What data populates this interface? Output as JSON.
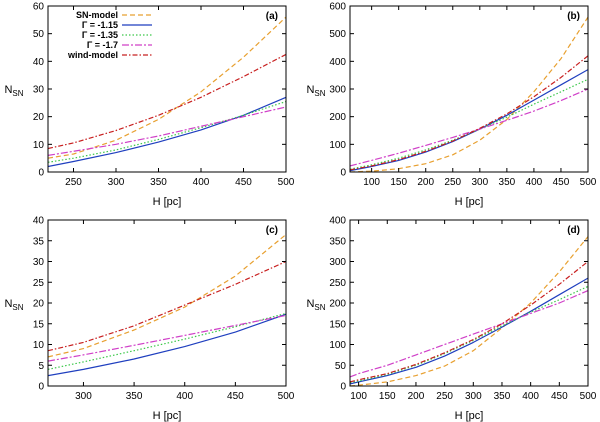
{
  "legend": [
    {
      "label": "SN-model",
      "color": "#e8a030",
      "dash": "5,3"
    },
    {
      "label": "Γ = -1.15",
      "color": "#1f3fbf",
      "dash": ""
    },
    {
      "label": "Γ = -1.35",
      "color": "#3cc84a",
      "dash": "1.5,2"
    },
    {
      "label": "Γ = -1.7",
      "color": "#d040c8",
      "dash": "7,2,2,2"
    },
    {
      "label": "wind-model",
      "color": "#c82020",
      "dash": "5,2,1.5,2"
    }
  ],
  "chart_data": [
    {
      "type": "line",
      "panel_label": "(a)",
      "xlabel": "H [pc]",
      "ylabel": "N",
      "ylabel_sub": "SN",
      "xlim": [
        220,
        500
      ],
      "ylim": [
        0,
        60
      ],
      "xticks": [
        250,
        300,
        350,
        400,
        450,
        500
      ],
      "yticks": [
        0,
        10,
        20,
        30,
        40,
        50,
        60
      ],
      "series": [
        {
          "name": "SN-model",
          "x": [
            220,
            250,
            300,
            350,
            400,
            450,
            500
          ],
          "y": [
            5.0,
            6.5,
            11.5,
            19.0,
            29.0,
            41.5,
            56.0
          ]
        },
        {
          "name": "Γ = -1.15",
          "x": [
            220,
            250,
            300,
            350,
            400,
            450,
            500
          ],
          "y": [
            2.0,
            3.8,
            7.0,
            10.8,
            15.2,
            20.5,
            27.0
          ]
        },
        {
          "name": "Γ = -1.35",
          "x": [
            220,
            250,
            300,
            350,
            400,
            450,
            500
          ],
          "y": [
            3.5,
            5.0,
            8.0,
            11.8,
            16.0,
            20.5,
            25.5
          ]
        },
        {
          "name": "Γ = -1.7",
          "x": [
            220,
            250,
            300,
            350,
            400,
            450,
            500
          ],
          "y": [
            6.0,
            7.5,
            10.0,
            13.0,
            16.5,
            20.0,
            23.5
          ]
        },
        {
          "name": "wind-model",
          "x": [
            220,
            250,
            300,
            350,
            400,
            450,
            500
          ],
          "y": [
            8.5,
            10.5,
            15.0,
            20.5,
            27.0,
            34.5,
            42.5
          ]
        }
      ]
    },
    {
      "type": "line",
      "panel_label": "(b)",
      "xlabel": "H [pc]",
      "ylabel": "N",
      "ylabel_sub": "SN",
      "xlim": [
        60,
        500
      ],
      "ylim": [
        0,
        600
      ],
      "xticks": [
        100,
        150,
        200,
        250,
        300,
        350,
        400,
        450,
        500
      ],
      "yticks": [
        0,
        100,
        200,
        300,
        400,
        500,
        600
      ],
      "series": [
        {
          "name": "SN-model",
          "x": [
            60,
            100,
            150,
            200,
            250,
            300,
            350,
            400,
            450,
            500
          ],
          "y": [
            0,
            3,
            12,
            30,
            62,
            115,
            190,
            290,
            410,
            560
          ]
        },
        {
          "name": "Γ = -1.15",
          "x": [
            60,
            100,
            150,
            200,
            250,
            300,
            350,
            400,
            450,
            500
          ],
          "y": [
            5,
            20,
            42,
            72,
            110,
            155,
            205,
            260,
            315,
            370
          ]
        },
        {
          "name": "Γ = -1.35",
          "x": [
            60,
            100,
            150,
            200,
            250,
            300,
            350,
            400,
            450,
            500
          ],
          "y": [
            10,
            26,
            50,
            80,
            115,
            155,
            198,
            245,
            290,
            335
          ]
        },
        {
          "name": "Γ = -1.7",
          "x": [
            60,
            100,
            150,
            200,
            250,
            300,
            350,
            400,
            450,
            500
          ],
          "y": [
            22,
            42,
            68,
            96,
            125,
            155,
            187,
            220,
            258,
            300
          ]
        },
        {
          "name": "wind-model",
          "x": [
            60,
            100,
            150,
            200,
            250,
            300,
            350,
            400,
            450,
            500
          ],
          "y": [
            8,
            22,
            45,
            75,
            112,
            158,
            210,
            272,
            342,
            420
          ]
        }
      ]
    },
    {
      "type": "line",
      "panel_label": "(c)",
      "xlabel": "H [pc]",
      "ylabel": "N",
      "ylabel_sub": "SN",
      "xlim": [
        265,
        500
      ],
      "ylim": [
        0,
        40
      ],
      "xticks": [
        300,
        350,
        400,
        450,
        500
      ],
      "yticks": [
        0,
        5,
        10,
        15,
        20,
        25,
        30,
        35,
        40
      ],
      "series": [
        {
          "name": "SN-model",
          "x": [
            265,
            300,
            350,
            400,
            450,
            500
          ],
          "y": [
            7.0,
            9.0,
            13.5,
            19.0,
            26.5,
            36.5
          ]
        },
        {
          "name": "Γ = -1.15",
          "x": [
            265,
            300,
            350,
            400,
            450,
            500
          ],
          "y": [
            2.5,
            4.0,
            6.5,
            9.5,
            13.0,
            17.3
          ]
        },
        {
          "name": "Γ = -1.35",
          "x": [
            265,
            300,
            350,
            400,
            450,
            500
          ],
          "y": [
            4.0,
            5.8,
            8.5,
            11.3,
            14.3,
            17.5
          ]
        },
        {
          "name": "Γ = -1.7",
          "x": [
            265,
            300,
            350,
            400,
            450,
            500
          ],
          "y": [
            6.0,
            7.5,
            9.8,
            12.2,
            14.6,
            17.0
          ]
        },
        {
          "name": "wind-model",
          "x": [
            265,
            300,
            350,
            400,
            450,
            500
          ],
          "y": [
            8.5,
            10.5,
            14.5,
            19.5,
            24.5,
            30.0
          ]
        }
      ]
    },
    {
      "type": "line",
      "panel_label": "(d)",
      "xlabel": "H [pc]",
      "ylabel": "N",
      "ylabel_sub": "SN",
      "xlim": [
        85,
        500
      ],
      "ylim": [
        0,
        400
      ],
      "xticks": [
        100,
        150,
        200,
        250,
        300,
        350,
        400,
        450,
        500
      ],
      "yticks": [
        0,
        50,
        100,
        150,
        200,
        250,
        300,
        350,
        400
      ],
      "series": [
        {
          "name": "SN-model",
          "x": [
            85,
            100,
            150,
            200,
            250,
            300,
            350,
            400,
            450,
            500
          ],
          "y": [
            0,
            2,
            10,
            25,
            48,
            85,
            140,
            200,
            275,
            360
          ]
        },
        {
          "name": "Γ = -1.15",
          "x": [
            85,
            100,
            150,
            200,
            250,
            300,
            350,
            400,
            450,
            500
          ],
          "y": [
            5,
            10,
            25,
            45,
            72,
            105,
            142,
            180,
            220,
            260
          ]
        },
        {
          "name": "Γ = -1.35",
          "x": [
            85,
            100,
            150,
            200,
            250,
            300,
            350,
            400,
            450,
            500
          ],
          "y": [
            8,
            12,
            28,
            50,
            78,
            110,
            145,
            178,
            208,
            240
          ]
        },
        {
          "name": "Γ = -1.7",
          "x": [
            85,
            100,
            150,
            200,
            250,
            300,
            350,
            400,
            450,
            500
          ],
          "y": [
            22,
            30,
            50,
            75,
            100,
            125,
            150,
            175,
            200,
            230
          ]
        },
        {
          "name": "wind-model",
          "x": [
            85,
            100,
            150,
            200,
            250,
            300,
            350,
            400,
            450,
            500
          ],
          "y": [
            10,
            15,
            30,
            52,
            80,
            112,
            150,
            195,
            245,
            300
          ]
        }
      ]
    }
  ]
}
